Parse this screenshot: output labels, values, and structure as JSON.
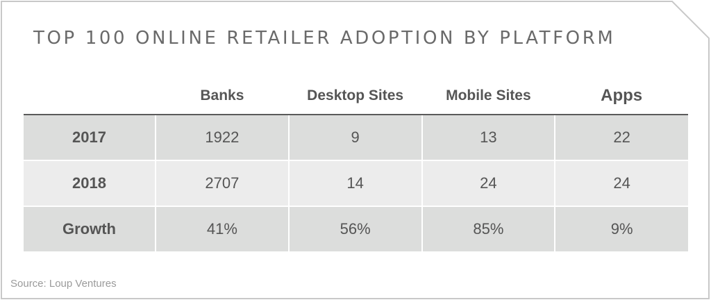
{
  "title": "TOP 100 ONLINE RETAILER ADOPTION BY PLATFORM",
  "table": {
    "columns": [
      "",
      "Banks",
      "Desktop Sites",
      "Mobile Sites",
      "Apps"
    ],
    "rows": [
      {
        "label": "2017",
        "cells": [
          "1922",
          "9",
          "13",
          "22"
        ]
      },
      {
        "label": "2018",
        "cells": [
          "2707",
          "14",
          "24",
          "24"
        ]
      },
      {
        "label": "Growth",
        "cells": [
          "41%",
          "56%",
          "85%",
          "9%"
        ]
      }
    ]
  },
  "source": "Source: Loup Ventures",
  "colors": {
    "frame": "#c8c8c8",
    "row_dark": "#dcdddc",
    "row_light": "#ececec",
    "text": "#555555",
    "header_rule": "#5a5a5a"
  }
}
